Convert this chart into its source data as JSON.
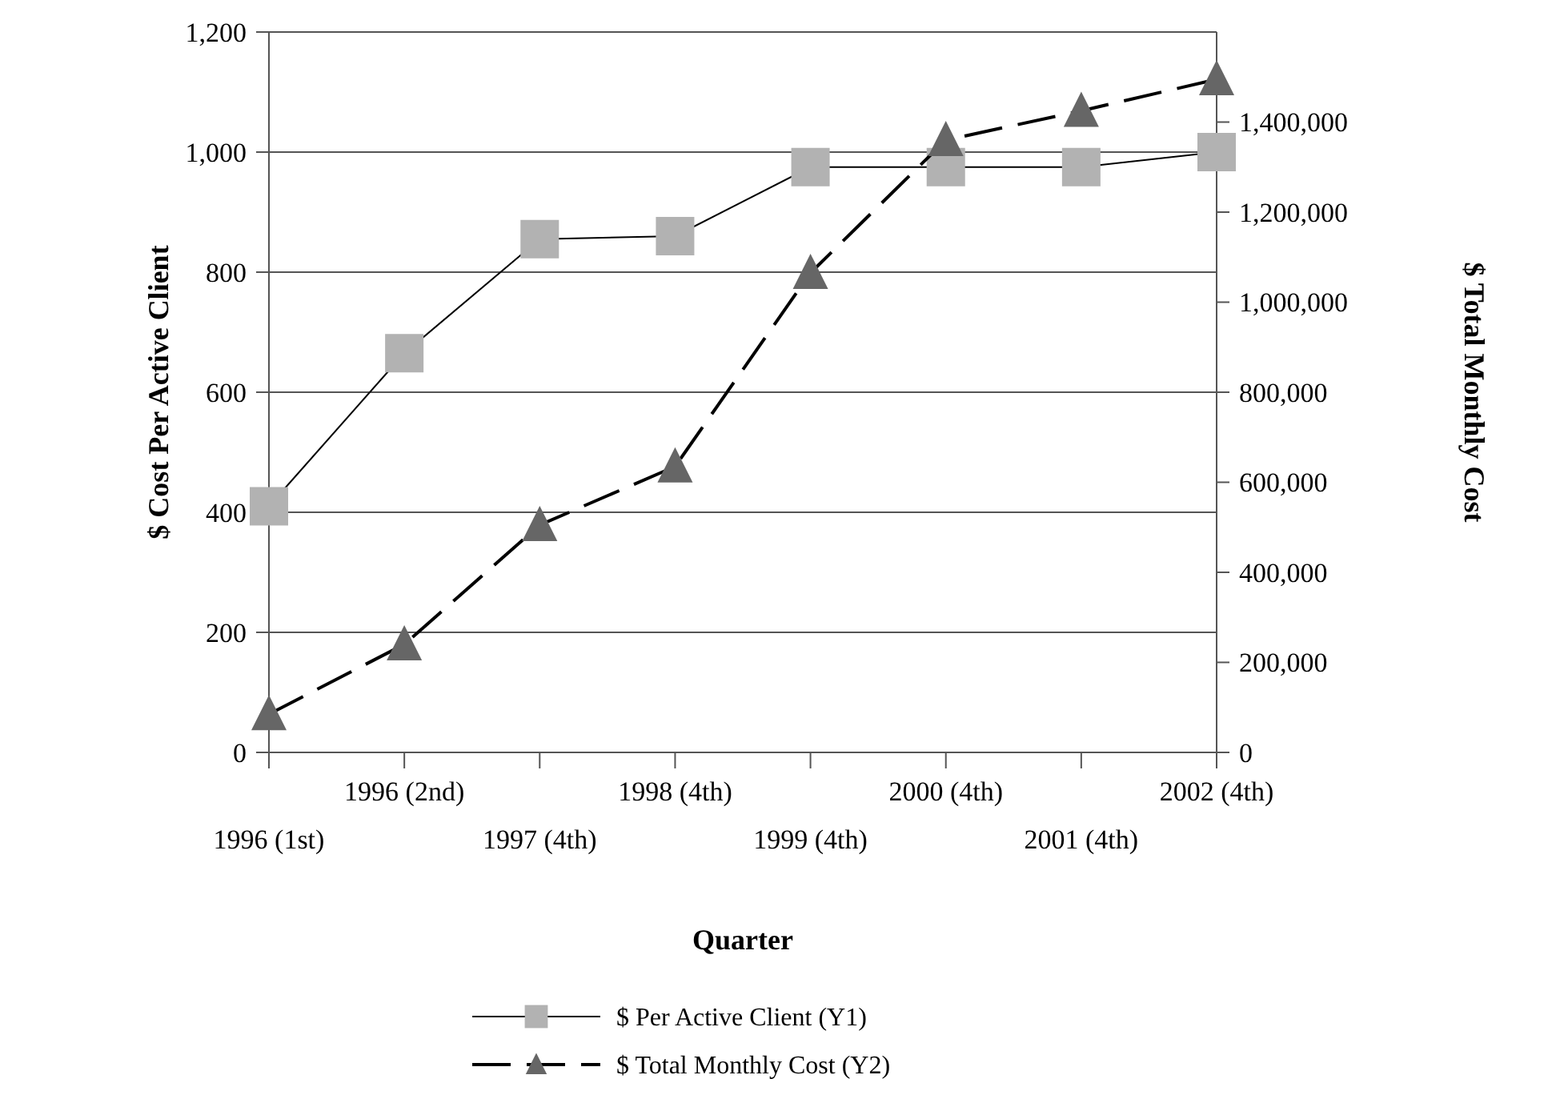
{
  "chart_data": {
    "type": "line",
    "xlabel": "Quarter",
    "ylabel": "$ Cost Per Active Client",
    "y2label": "$ Total Monthly Cost",
    "categories": [
      "1996 (1st)",
      "1996 (2nd)",
      "1997 (4th)",
      "1998 (4th)",
      "1999 (4th)",
      "2000 (4th)",
      "2001 (4th)",
      "2002 (4th)"
    ],
    "series": [
      {
        "name": "$ Per Active Client (Y1)",
        "color": "#b2b2b2",
        "marker": "square",
        "line_style": "solid",
        "values": [
          410,
          665,
          855,
          860,
          975,
          975,
          975,
          1000
        ]
      },
      {
        "name": "$ Total Monthly Cost (Y2)",
        "color": "#666666",
        "marker": "triangle",
        "line_style": "dashed",
        "axis": "y2",
        "values": [
          85000,
          240000,
          505000,
          635000,
          1065000,
          1360000,
          1425000,
          1495000
        ]
      }
    ],
    "ylim": [
      0,
      1200
    ],
    "yticks": [
      0,
      {
        "value": 200,
        "label": "200"
      },
      {
        "value": 400,
        "label": "400"
      },
      {
        "value": 600,
        "label": "600"
      },
      {
        "value": 800,
        "label": "800"
      },
      {
        "value": 1000,
        "label": "1,000"
      },
      {
        "value": 1200,
        "label": "1,200"
      }
    ],
    "y2lim": [
      0,
      1600000
    ],
    "y2ticks": [
      0,
      {
        "value": 200000,
        "label": "200,000"
      },
      {
        "value": 400000,
        "label": "400,000"
      },
      {
        "value": 600000,
        "label": "600,000"
      },
      {
        "value": 800000,
        "label": "800,000"
      },
      {
        "value": 1000000,
        "label": "1,000,000"
      },
      {
        "value": 1200000,
        "label": "1,200,000"
      },
      {
        "value": 1400000,
        "label": "1,400,000"
      }
    ],
    "grid": "y",
    "legend": "bottom"
  }
}
